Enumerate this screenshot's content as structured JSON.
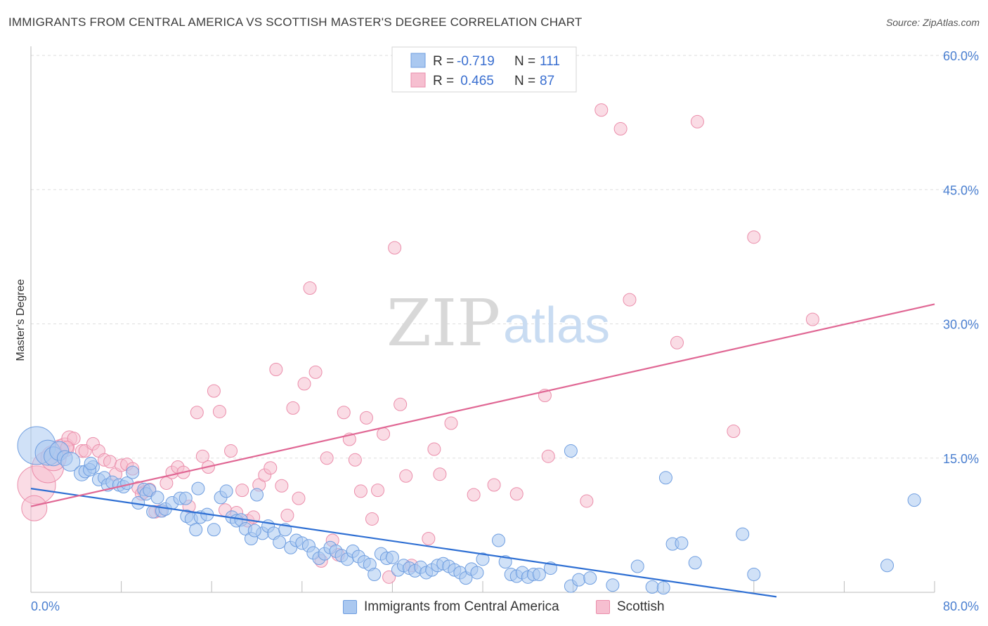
{
  "header": {
    "title": "IMMIGRANTS FROM CENTRAL AMERICA VS SCOTTISH MASTER'S DEGREE CORRELATION CHART",
    "source": "Source: ZipAtlas.com"
  },
  "watermark": {
    "zip": "ZIP",
    "atlas": "atlas"
  },
  "legend": {
    "rows": [
      {
        "r_label": "R =",
        "r_value": "-0.719",
        "n_label": "N =",
        "n_value": "111"
      },
      {
        "r_label": "R =",
        "r_value": " 0.465",
        "n_label": "N =",
        "n_value": "87"
      }
    ]
  },
  "bottom_legend": {
    "central_america": "Immigrants from Central America",
    "scottish": "Scottish"
  },
  "colors": {
    "blue_fill": "#aac8f0",
    "blue_stroke": "#6f9ee0",
    "blue_line": "#2e6fd3",
    "pink_fill": "#f6bfd0",
    "pink_stroke": "#eb8eab",
    "pink_line": "#e06794",
    "grid": "#dddddd",
    "tick_label": "#4a7fd0"
  },
  "chart_data": {
    "type": "scatter",
    "title": "IMMIGRANTS FROM CENTRAL AMERICA VS SCOTTISH MASTER'S DEGREE CORRELATION CHART",
    "xlabel": "",
    "ylabel": "Master's Degree",
    "xlim": [
      0,
      80
    ],
    "ylim": [
      0,
      60
    ],
    "x_tick_labels": [
      "0.0%",
      "80.0%"
    ],
    "y_ticks": [
      15,
      30,
      45,
      60
    ],
    "y_tick_labels": [
      "15.0%",
      "30.0%",
      "45.0%",
      "60.0%"
    ],
    "grid": true,
    "legend_position": "top-center",
    "series": [
      {
        "name": "Immigrants from Central America",
        "r": -0.719,
        "n": 111,
        "trend": {
          "x": [
            0,
            66
          ],
          "y": [
            11.6,
            -0.5
          ]
        },
        "points": [
          {
            "x": 0.5,
            "y": 16.4,
            "s": 3
          },
          {
            "x": 1.5,
            "y": 15.6,
            "s": 2
          },
          {
            "x": 2.0,
            "y": 15.2,
            "s": 1.5
          },
          {
            "x": 2.5,
            "y": 15.8,
            "s": 1.5
          },
          {
            "x": 3.0,
            "y": 15.0,
            "s": 1.2
          },
          {
            "x": 3.5,
            "y": 14.6,
            "s": 1.5
          },
          {
            "x": 4.5,
            "y": 13.3,
            "s": 1.2
          },
          {
            "x": 4.8,
            "y": 13.5,
            "s": 1
          },
          {
            "x": 5.5,
            "y": 14.0,
            "s": 1
          },
          {
            "x": 5.2,
            "y": 13.7,
            "s": 1
          },
          {
            "x": 5.3,
            "y": 14.4,
            "s": 1
          },
          {
            "x": 6.0,
            "y": 12.6,
            "s": 1
          },
          {
            "x": 6.5,
            "y": 12.8,
            "s": 1
          },
          {
            "x": 6.8,
            "y": 12.0,
            "s": 1
          },
          {
            "x": 7.2,
            "y": 12.3,
            "s": 1
          },
          {
            "x": 7.8,
            "y": 12.0,
            "s": 1
          },
          {
            "x": 8.2,
            "y": 11.8,
            "s": 1
          },
          {
            "x": 8.5,
            "y": 12.2,
            "s": 1
          },
          {
            "x": 9.0,
            "y": 13.4,
            "s": 1
          },
          {
            "x": 9.5,
            "y": 10.0,
            "s": 1
          },
          {
            "x": 10.0,
            "y": 11.5,
            "s": 1
          },
          {
            "x": 10.2,
            "y": 11.0,
            "s": 1
          },
          {
            "x": 10.5,
            "y": 11.4,
            "s": 1
          },
          {
            "x": 10.8,
            "y": 9.0,
            "s": 1
          },
          {
            "x": 11.2,
            "y": 10.6,
            "s": 1
          },
          {
            "x": 11.6,
            "y": 9.1,
            "s": 1
          },
          {
            "x": 11.9,
            "y": 9.3,
            "s": 1
          },
          {
            "x": 12.5,
            "y": 10.0,
            "s": 1
          },
          {
            "x": 13.2,
            "y": 10.5,
            "s": 1
          },
          {
            "x": 13.8,
            "y": 8.5,
            "s": 1
          },
          {
            "x": 14.2,
            "y": 8.2,
            "s": 1
          },
          {
            "x": 14.6,
            "y": 7.0,
            "s": 1
          },
          {
            "x": 15.0,
            "y": 8.4,
            "s": 1
          },
          {
            "x": 15.6,
            "y": 8.7,
            "s": 1
          },
          {
            "x": 16.2,
            "y": 7.0,
            "s": 1
          },
          {
            "x": 16.8,
            "y": 10.6,
            "s": 1
          },
          {
            "x": 17.3,
            "y": 11.3,
            "s": 1
          },
          {
            "x": 17.8,
            "y": 8.4,
            "s": 1
          },
          {
            "x": 18.2,
            "y": 8.0,
            "s": 1
          },
          {
            "x": 18.6,
            "y": 8.1,
            "s": 1
          },
          {
            "x": 19.0,
            "y": 7.1,
            "s": 1
          },
          {
            "x": 19.5,
            "y": 6.0,
            "s": 1
          },
          {
            "x": 20.0,
            "y": 10.9,
            "s": 1
          },
          {
            "x": 20.5,
            "y": 6.6,
            "s": 1
          },
          {
            "x": 21.0,
            "y": 7.4,
            "s": 1
          },
          {
            "x": 21.5,
            "y": 6.6,
            "s": 1
          },
          {
            "x": 22.0,
            "y": 5.6,
            "s": 1
          },
          {
            "x": 22.5,
            "y": 7.0,
            "s": 1
          },
          {
            "x": 23.0,
            "y": 5.0,
            "s": 1
          },
          {
            "x": 23.5,
            "y": 5.8,
            "s": 1
          },
          {
            "x": 24.0,
            "y": 5.5,
            "s": 1
          },
          {
            "x": 24.6,
            "y": 5.2,
            "s": 1
          },
          {
            "x": 25.0,
            "y": 4.4,
            "s": 1
          },
          {
            "x": 25.5,
            "y": 3.8,
            "s": 1
          },
          {
            "x": 26.0,
            "y": 4.3,
            "s": 1
          },
          {
            "x": 26.5,
            "y": 5.0,
            "s": 1
          },
          {
            "x": 27.0,
            "y": 4.6,
            "s": 1
          },
          {
            "x": 27.5,
            "y": 4.1,
            "s": 1
          },
          {
            "x": 28.0,
            "y": 3.7,
            "s": 1
          },
          {
            "x": 28.5,
            "y": 4.6,
            "s": 1
          },
          {
            "x": 29.0,
            "y": 4.0,
            "s": 1
          },
          {
            "x": 29.5,
            "y": 3.4,
            "s": 1
          },
          {
            "x": 30.0,
            "y": 3.1,
            "s": 1
          },
          {
            "x": 30.4,
            "y": 2.0,
            "s": 1
          },
          {
            "x": 31.0,
            "y": 4.3,
            "s": 1
          },
          {
            "x": 31.5,
            "y": 3.8,
            "s": 1
          },
          {
            "x": 32.0,
            "y": 3.9,
            "s": 1
          },
          {
            "x": 32.5,
            "y": 2.5,
            "s": 1
          },
          {
            "x": 33.0,
            "y": 3.0,
            "s": 1
          },
          {
            "x": 33.5,
            "y": 2.7,
            "s": 1
          },
          {
            "x": 34.0,
            "y": 2.4,
            "s": 1
          },
          {
            "x": 34.5,
            "y": 2.8,
            "s": 1
          },
          {
            "x": 35.0,
            "y": 2.2,
            "s": 1
          },
          {
            "x": 35.5,
            "y": 2.5,
            "s": 1
          },
          {
            "x": 36.0,
            "y": 3.0,
            "s": 1
          },
          {
            "x": 36.5,
            "y": 3.2,
            "s": 1
          },
          {
            "x": 37.0,
            "y": 2.9,
            "s": 1
          },
          {
            "x": 37.5,
            "y": 2.5,
            "s": 1
          },
          {
            "x": 38.0,
            "y": 2.2,
            "s": 1
          },
          {
            "x": 38.5,
            "y": 1.6,
            "s": 1
          },
          {
            "x": 39.0,
            "y": 2.6,
            "s": 1
          },
          {
            "x": 39.5,
            "y": 2.2,
            "s": 1
          },
          {
            "x": 40.0,
            "y": 3.7,
            "s": 1
          },
          {
            "x": 42.0,
            "y": 3.4,
            "s": 1
          },
          {
            "x": 42.5,
            "y": 2.0,
            "s": 1
          },
          {
            "x": 43.0,
            "y": 1.8,
            "s": 1
          },
          {
            "x": 43.5,
            "y": 2.2,
            "s": 1
          },
          {
            "x": 44.0,
            "y": 1.7,
            "s": 1
          },
          {
            "x": 44.5,
            "y": 2.0,
            "s": 1
          },
          {
            "x": 45.0,
            "y": 2.0,
            "s": 1
          },
          {
            "x": 46.0,
            "y": 2.7,
            "s": 1
          },
          {
            "x": 47.8,
            "y": 0.7,
            "s": 1
          },
          {
            "x": 48.5,
            "y": 1.4,
            "s": 1
          },
          {
            "x": 49.5,
            "y": 1.6,
            "s": 1
          },
          {
            "x": 51.5,
            "y": 0.8,
            "s": 1
          },
          {
            "x": 53.7,
            "y": 2.9,
            "s": 1
          },
          {
            "x": 55.0,
            "y": 0.6,
            "s": 1
          },
          {
            "x": 56.0,
            "y": 0.5,
            "s": 1
          },
          {
            "x": 56.8,
            "y": 5.4,
            "s": 1
          },
          {
            "x": 57.6,
            "y": 5.5,
            "s": 1
          },
          {
            "x": 58.8,
            "y": 3.3,
            "s": 1
          },
          {
            "x": 63.0,
            "y": 6.5,
            "s": 1
          },
          {
            "x": 64.0,
            "y": 2.0,
            "s": 1
          },
          {
            "x": 75.8,
            "y": 3.0,
            "s": 1
          },
          {
            "x": 78.2,
            "y": 10.3,
            "s": 1
          },
          {
            "x": 41.4,
            "y": 5.8,
            "s": 1
          },
          {
            "x": 47.8,
            "y": 15.8,
            "s": 1
          },
          {
            "x": 56.2,
            "y": 12.8,
            "s": 1
          },
          {
            "x": 19.8,
            "y": 6.9,
            "s": 1
          },
          {
            "x": 14.8,
            "y": 11.6,
            "s": 1
          },
          {
            "x": 13.7,
            "y": 10.5,
            "s": 1
          }
        ]
      },
      {
        "name": "Scottish",
        "r": 0.465,
        "n": 87,
        "trend": {
          "x": [
            0,
            80
          ],
          "y": [
            9.6,
            32.2
          ]
        },
        "points": [
          {
            "x": 0.5,
            "y": 12.0,
            "s": 3
          },
          {
            "x": 0.3,
            "y": 9.4,
            "s": 2
          },
          {
            "x": 1.5,
            "y": 14.0,
            "s": 2.5
          },
          {
            "x": 2.0,
            "y": 15.0,
            "s": 2
          },
          {
            "x": 2.6,
            "y": 16.0,
            "s": 1.5
          },
          {
            "x": 3.0,
            "y": 16.2,
            "s": 1.5
          },
          {
            "x": 3.4,
            "y": 17.2,
            "s": 1.2
          },
          {
            "x": 3.8,
            "y": 17.2,
            "s": 1
          },
          {
            "x": 4.5,
            "y": 15.8,
            "s": 1
          },
          {
            "x": 4.8,
            "y": 15.8,
            "s": 1
          },
          {
            "x": 5.5,
            "y": 16.6,
            "s": 1
          },
          {
            "x": 6.0,
            "y": 15.8,
            "s": 1
          },
          {
            "x": 6.5,
            "y": 14.8,
            "s": 1
          },
          {
            "x": 7.0,
            "y": 14.6,
            "s": 1
          },
          {
            "x": 7.5,
            "y": 13.2,
            "s": 1
          },
          {
            "x": 8.0,
            "y": 14.2,
            "s": 1
          },
          {
            "x": 8.5,
            "y": 14.3,
            "s": 1
          },
          {
            "x": 9.0,
            "y": 13.8,
            "s": 1
          },
          {
            "x": 9.5,
            "y": 11.7,
            "s": 1
          },
          {
            "x": 10.0,
            "y": 11.2,
            "s": 1
          },
          {
            "x": 10.5,
            "y": 11.5,
            "s": 1
          },
          {
            "x": 11.0,
            "y": 9.0,
            "s": 1
          },
          {
            "x": 11.5,
            "y": 9.1,
            "s": 1
          },
          {
            "x": 12.0,
            "y": 12.2,
            "s": 1
          },
          {
            "x": 12.5,
            "y": 13.4,
            "s": 1
          },
          {
            "x": 13.0,
            "y": 14.0,
            "s": 1
          },
          {
            "x": 13.5,
            "y": 13.4,
            "s": 1
          },
          {
            "x": 14.0,
            "y": 9.6,
            "s": 1
          },
          {
            "x": 14.7,
            "y": 20.1,
            "s": 1
          },
          {
            "x": 15.2,
            "y": 15.2,
            "s": 1
          },
          {
            "x": 15.7,
            "y": 14.0,
            "s": 1
          },
          {
            "x": 16.2,
            "y": 22.5,
            "s": 1
          },
          {
            "x": 16.7,
            "y": 20.2,
            "s": 1
          },
          {
            "x": 17.2,
            "y": 9.2,
            "s": 1
          },
          {
            "x": 17.7,
            "y": 15.8,
            "s": 1
          },
          {
            "x": 18.2,
            "y": 8.9,
            "s": 1
          },
          {
            "x": 18.7,
            "y": 11.4,
            "s": 1
          },
          {
            "x": 19.2,
            "y": 8.0,
            "s": 1
          },
          {
            "x": 19.7,
            "y": 8.4,
            "s": 1
          },
          {
            "x": 20.2,
            "y": 12.0,
            "s": 1
          },
          {
            "x": 20.7,
            "y": 13.1,
            "s": 1
          },
          {
            "x": 21.2,
            "y": 13.9,
            "s": 1
          },
          {
            "x": 21.7,
            "y": 24.9,
            "s": 1
          },
          {
            "x": 22.2,
            "y": 11.9,
            "s": 1
          },
          {
            "x": 22.7,
            "y": 8.6,
            "s": 1
          },
          {
            "x": 23.2,
            "y": 20.6,
            "s": 1
          },
          {
            "x": 23.7,
            "y": 10.5,
            "s": 1
          },
          {
            "x": 24.2,
            "y": 23.3,
            "s": 1
          },
          {
            "x": 24.7,
            "y": 34.0,
            "s": 1
          },
          {
            "x": 25.2,
            "y": 24.6,
            "s": 1
          },
          {
            "x": 25.7,
            "y": 3.5,
            "s": 1
          },
          {
            "x": 26.2,
            "y": 15.0,
            "s": 1
          },
          {
            "x": 26.7,
            "y": 5.8,
            "s": 1
          },
          {
            "x": 27.2,
            "y": 4.2,
            "s": 1
          },
          {
            "x": 27.7,
            "y": 20.1,
            "s": 1
          },
          {
            "x": 28.2,
            "y": 17.1,
            "s": 1
          },
          {
            "x": 28.7,
            "y": 14.8,
            "s": 1
          },
          {
            "x": 29.2,
            "y": 11.3,
            "s": 1
          },
          {
            "x": 29.7,
            "y": 19.5,
            "s": 1
          },
          {
            "x": 30.2,
            "y": 8.2,
            "s": 1
          },
          {
            "x": 30.7,
            "y": 11.4,
            "s": 1
          },
          {
            "x": 31.2,
            "y": 17.7,
            "s": 1
          },
          {
            "x": 31.7,
            "y": 1.7,
            "s": 1
          },
          {
            "x": 32.2,
            "y": 38.5,
            "s": 1
          },
          {
            "x": 32.7,
            "y": 21.0,
            "s": 1
          },
          {
            "x": 33.2,
            "y": 13.0,
            "s": 1
          },
          {
            "x": 33.7,
            "y": 3.0,
            "s": 1
          },
          {
            "x": 35.2,
            "y": 6.0,
            "s": 1
          },
          {
            "x": 35.7,
            "y": 16.0,
            "s": 1
          },
          {
            "x": 36.2,
            "y": 13.2,
            "s": 1
          },
          {
            "x": 37.2,
            "y": 18.9,
            "s": 1
          },
          {
            "x": 39.2,
            "y": 10.9,
            "s": 1
          },
          {
            "x": 41.0,
            "y": 12.0,
            "s": 1
          },
          {
            "x": 43.0,
            "y": 11.0,
            "s": 1
          },
          {
            "x": 45.5,
            "y": 22.0,
            "s": 1
          },
          {
            "x": 45.8,
            "y": 15.2,
            "s": 1
          },
          {
            "x": 49.2,
            "y": 10.2,
            "s": 1
          },
          {
            "x": 50.5,
            "y": 53.9,
            "s": 1
          },
          {
            "x": 52.2,
            "y": 51.8,
            "s": 1
          },
          {
            "x": 53.0,
            "y": 32.7,
            "s": 1
          },
          {
            "x": 57.2,
            "y": 27.9,
            "s": 1
          },
          {
            "x": 59.0,
            "y": 52.6,
            "s": 1
          },
          {
            "x": 62.2,
            "y": 18.0,
            "s": 1
          },
          {
            "x": 64.0,
            "y": 39.7,
            "s": 1
          },
          {
            "x": 69.2,
            "y": 30.5,
            "s": 1
          },
          {
            "x": 9.8,
            "y": 11.0,
            "s": 1
          },
          {
            "x": 3.2,
            "y": 16.2,
            "s": 1
          }
        ]
      }
    ]
  }
}
